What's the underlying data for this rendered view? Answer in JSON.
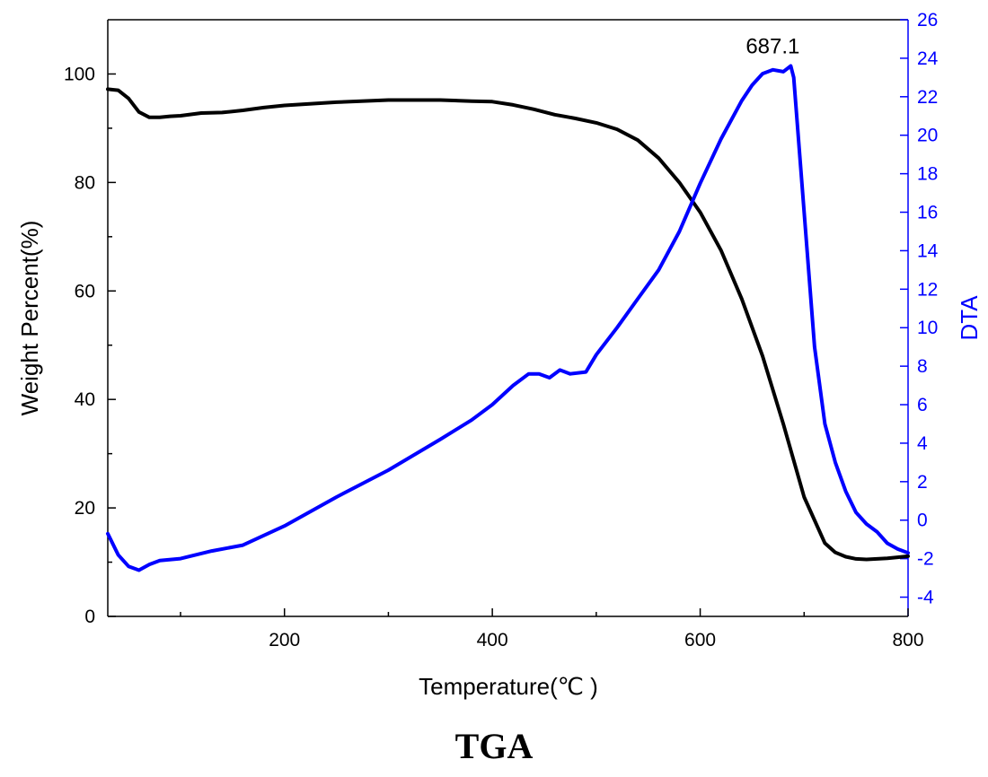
{
  "chart_data": {
    "type": "line",
    "caption": "TGA",
    "xlabel": "Temperature(℃ )",
    "ylabel_left": "Weight Percent(%)",
    "ylabel_right": "DTA",
    "xlim": [
      30,
      800
    ],
    "ylim_left": [
      0,
      110
    ],
    "ylim_right": [
      -5,
      26
    ],
    "x_ticks": [
      200,
      400,
      600,
      800
    ],
    "y_ticks_left": [
      0,
      20,
      40,
      60,
      80,
      100
    ],
    "y_ticks_right": [
      -4,
      -2,
      0,
      2,
      4,
      6,
      8,
      10,
      12,
      14,
      16,
      18,
      20,
      22,
      24,
      26
    ],
    "grid": false,
    "annotation": {
      "text": "687.1",
      "x": 687.1,
      "y": 23.6,
      "axis": "right"
    },
    "series": [
      {
        "axis": "left",
        "color": "#000000",
        "x": [
          30,
          40,
          50,
          60,
          70,
          80,
          90,
          100,
          120,
          140,
          160,
          180,
          200,
          250,
          300,
          350,
          380,
          400,
          420,
          440,
          460,
          480,
          500,
          520,
          540,
          560,
          580,
          600,
          620,
          640,
          660,
          680,
          700,
          720,
          730,
          740,
          750,
          760,
          770,
          780,
          790,
          800
        ],
        "values": [
          97.2,
          97.0,
          95.5,
          93.0,
          92.0,
          92.0,
          92.2,
          92.3,
          92.8,
          92.9,
          93.3,
          93.8,
          94.2,
          94.8,
          95.2,
          95.2,
          95.0,
          94.9,
          94.3,
          93.5,
          92.5,
          91.8,
          91.0,
          89.8,
          87.8,
          84.5,
          80.0,
          74.5,
          67.5,
          58.5,
          48.0,
          35.5,
          22.0,
          13.5,
          11.8,
          11.0,
          10.6,
          10.5,
          10.6,
          10.7,
          10.9,
          11.1
        ]
      },
      {
        "axis": "right",
        "color": "#0000ff",
        "x": [
          30,
          40,
          50,
          60,
          70,
          80,
          100,
          130,
          160,
          200,
          250,
          300,
          350,
          380,
          400,
          420,
          435,
          445,
          455,
          465,
          475,
          490,
          500,
          520,
          540,
          560,
          580,
          600,
          620,
          640,
          650,
          660,
          670,
          680,
          687.1,
          690,
          700,
          710,
          720,
          730,
          740,
          750,
          760,
          770,
          780,
          790,
          800
        ],
        "values": [
          -0.7,
          -1.8,
          -2.4,
          -2.6,
          -2.3,
          -2.1,
          -2.0,
          -1.6,
          -1.3,
          -0.3,
          1.2,
          2.6,
          4.2,
          5.2,
          6.0,
          7.0,
          7.6,
          7.6,
          7.4,
          7.8,
          7.6,
          7.7,
          8.6,
          10.0,
          11.5,
          13.0,
          15.0,
          17.5,
          19.8,
          21.8,
          22.6,
          23.2,
          23.4,
          23.3,
          23.6,
          23.0,
          16.0,
          9.0,
          5.0,
          3.0,
          1.5,
          0.4,
          -0.2,
          -0.6,
          -1.2,
          -1.5,
          -1.7
        ]
      }
    ]
  }
}
